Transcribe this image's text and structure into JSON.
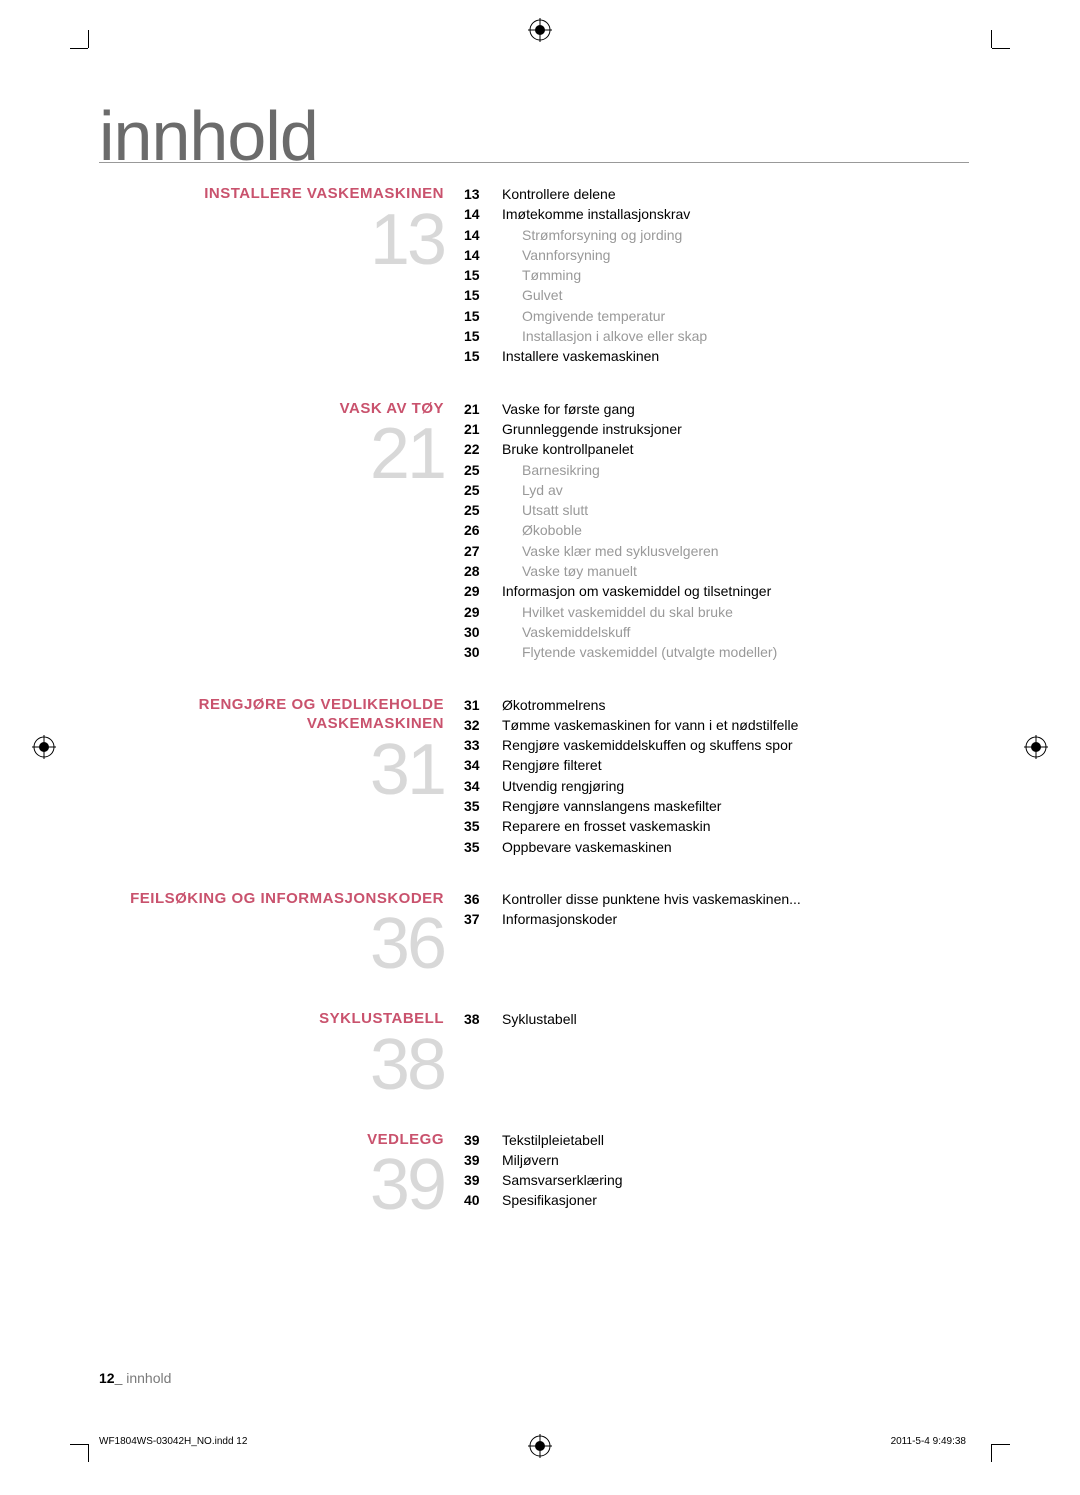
{
  "page_title": "innhold",
  "sections": [
    {
      "heading": "INSTALLERE VASKEMASKINEN",
      "number": "13",
      "items": [
        {
          "page": "13",
          "label": "Kontrollere delene",
          "sub": false
        },
        {
          "page": "14",
          "label": "Imøtekomme installasjonskrav",
          "sub": false
        },
        {
          "page": "14",
          "label": "Strømforsyning og jording",
          "sub": true
        },
        {
          "page": "14",
          "label": "Vannforsyning",
          "sub": true
        },
        {
          "page": "15",
          "label": "Tømming",
          "sub": true
        },
        {
          "page": "15",
          "label": "Gulvet",
          "sub": true
        },
        {
          "page": "15",
          "label": "Omgivende temperatur",
          "sub": true
        },
        {
          "page": "15",
          "label": "Installasjon i alkove eller skap",
          "sub": true
        },
        {
          "page": "15",
          "label": "Installere vaskemaskinen",
          "sub": false
        }
      ]
    },
    {
      "heading": "VASK AV TØY",
      "number": "21",
      "items": [
        {
          "page": "21",
          "label": "Vaske for første gang",
          "sub": false
        },
        {
          "page": "21",
          "label": "Grunnleggende instruksjoner",
          "sub": false
        },
        {
          "page": "22",
          "label": "Bruke kontrollpanelet",
          "sub": false
        },
        {
          "page": "25",
          "label": "Barnesikring",
          "sub": true
        },
        {
          "page": "25",
          "label": "Lyd av",
          "sub": true
        },
        {
          "page": "25",
          "label": "Utsatt slutt",
          "sub": true
        },
        {
          "page": "26",
          "label": "Økoboble",
          "sub": true
        },
        {
          "page": "27",
          "label": "Vaske klær med syklusvelgeren",
          "sub": true
        },
        {
          "page": "28",
          "label": "Vaske tøy manuelt",
          "sub": true
        },
        {
          "page": "29",
          "label": "Informasjon om vaskemiddel og tilsetninger",
          "sub": false
        },
        {
          "page": "29",
          "label": "Hvilket vaskemiddel du skal bruke",
          "sub": true
        },
        {
          "page": "30",
          "label": "Vaskemiddelskuff",
          "sub": true
        },
        {
          "page": "30",
          "label": "Flytende vaskemiddel (utvalgte modeller)",
          "sub": true
        }
      ]
    },
    {
      "heading": "RENGJØRE OG VEDLIKEHOLDE VASKEMASKINEN",
      "number": "31",
      "items": [
        {
          "page": "31",
          "label": "Økotrommelrens",
          "sub": false
        },
        {
          "page": "32",
          "label": "Tømme vaskemaskinen for vann i et nødstilfelle",
          "sub": false
        },
        {
          "page": "33",
          "label": "Rengjøre vaskemiddelskuffen og skuffens spor",
          "sub": false
        },
        {
          "page": "34",
          "label": "Rengjøre filteret",
          "sub": false
        },
        {
          "page": "34",
          "label": "Utvendig rengjøring",
          "sub": false
        },
        {
          "page": "35",
          "label": "Rengjøre vannslangens maskefilter",
          "sub": false
        },
        {
          "page": "35",
          "label": "Reparere en frosset vaskemaskin",
          "sub": false
        },
        {
          "page": "35",
          "label": "Oppbevare vaskemaskinen",
          "sub": false
        }
      ]
    },
    {
      "heading": "FEILSØKING OG INFORMASJONSKODER",
      "number": "36",
      "items": [
        {
          "page": "36",
          "label": "Kontroller disse punktene hvis vaskemaskinen...",
          "sub": false
        },
        {
          "page": "37",
          "label": "Informasjonskoder",
          "sub": false
        }
      ]
    },
    {
      "heading": "SYKLUSTABELL",
      "number": "38",
      "items": [
        {
          "page": "38",
          "label": "Syklustabell",
          "sub": false
        }
      ]
    },
    {
      "heading": "VEDLEGG",
      "number": "39",
      "items": [
        {
          "page": "39",
          "label": "Tekstilpleietabell",
          "sub": false
        },
        {
          "page": "39",
          "label": "Miljøvern",
          "sub": false
        },
        {
          "page": "39",
          "label": "Samsvarserklæring",
          "sub": false
        },
        {
          "page": "40",
          "label": "Spesifikasjoner",
          "sub": false
        }
      ]
    }
  ],
  "footer": {
    "page_number": "12_",
    "page_label": " innhold",
    "filename": "WF1804WS-03042H_NO.indd   12",
    "timestamp": "2011-5-4   9:49:38"
  },
  "colors": {
    "heading": "#c9526d",
    "number": "#d8d8d8",
    "sub_text": "#999999",
    "title": "#6b6b6b"
  }
}
